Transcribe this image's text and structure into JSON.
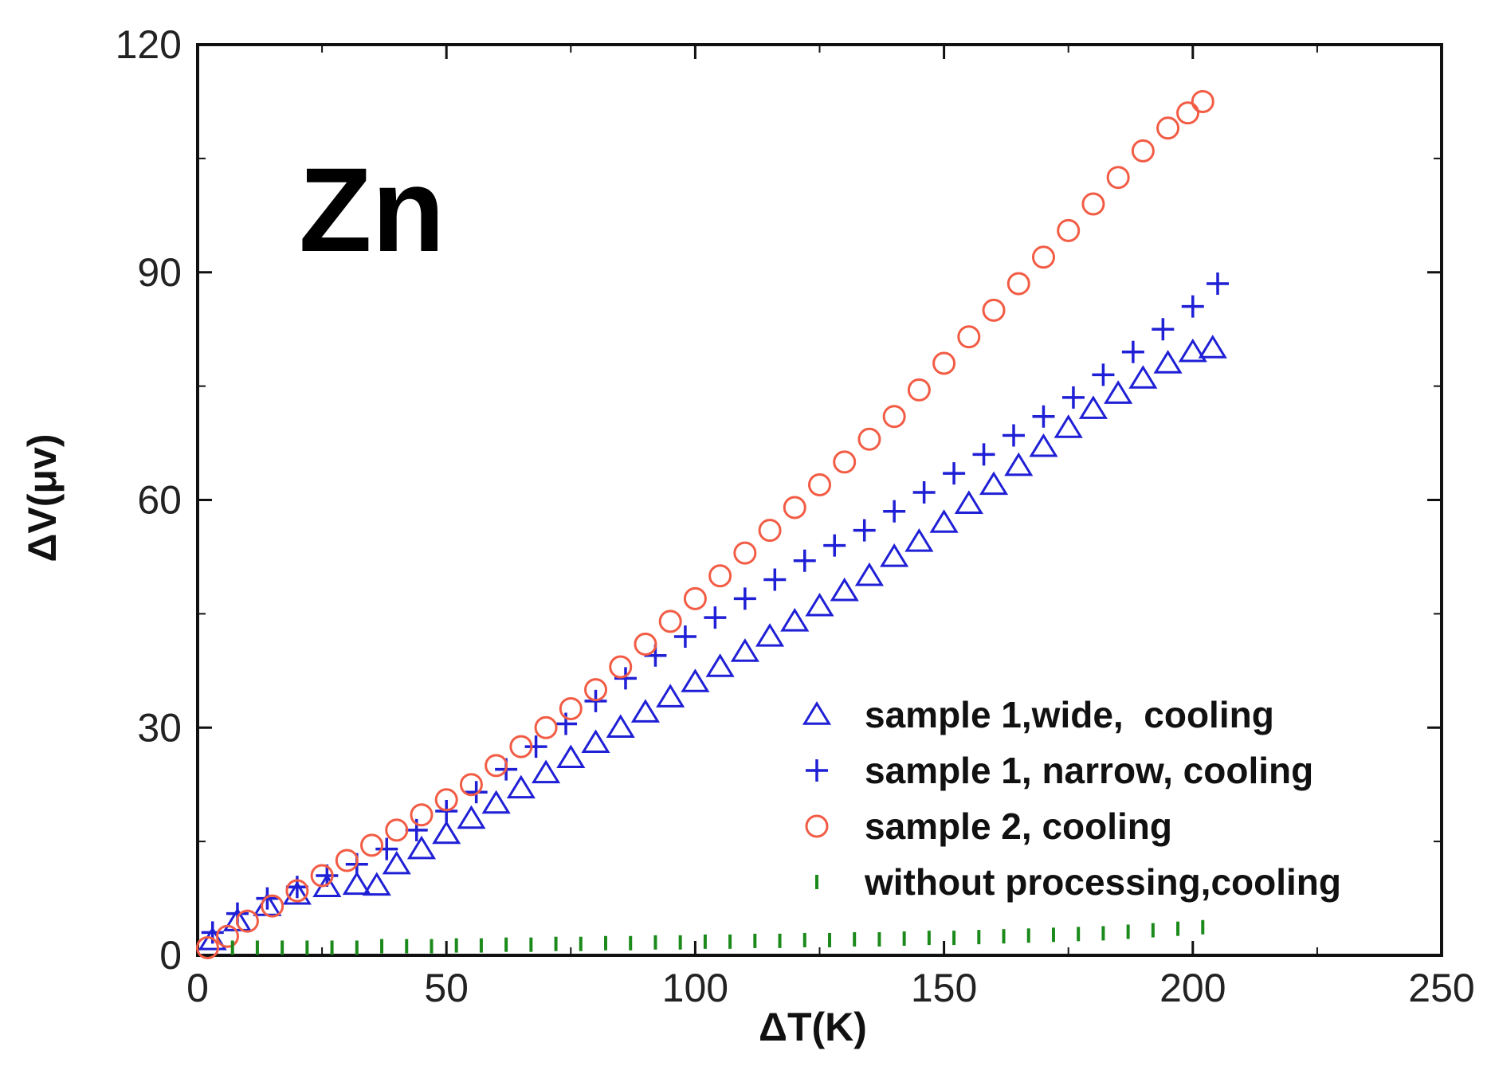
{
  "chart_data": {
    "type": "scatter",
    "title": "",
    "annotation": "Zn",
    "xlabel": "ΔT(K)",
    "ylabel": "ΔV(μv)",
    "xlim": [
      0,
      250
    ],
    "ylim": [
      0,
      120
    ],
    "xticks": [
      0,
      50,
      100,
      150,
      200,
      250
    ],
    "yticks": [
      0,
      30,
      60,
      90,
      120
    ],
    "xtick_labels": [
      "0",
      "50",
      "100",
      "150",
      "200",
      "250"
    ],
    "ytick_labels": [
      "0",
      "30",
      "60",
      "90",
      "120"
    ],
    "grid": false,
    "legend_position": "bottom-right",
    "series": [
      {
        "name": "sample 1,wide,  cooling",
        "marker": "triangle",
        "color": "#1f1fd6",
        "x": [
          3,
          8,
          14,
          20,
          26,
          32,
          36,
          40,
          45,
          50,
          55,
          60,
          65,
          70,
          75,
          80,
          85,
          90,
          95,
          100,
          105,
          110,
          115,
          120,
          125,
          130,
          135,
          140,
          145,
          150,
          155,
          160,
          165,
          170,
          175,
          180,
          185,
          190,
          195,
          200,
          204
        ],
        "y": [
          2,
          4.5,
          6.5,
          8,
          9,
          9.3,
          9.2,
          12,
          14,
          16,
          18,
          20,
          22,
          24,
          26,
          28,
          30,
          32,
          34,
          36,
          38,
          40,
          42,
          44,
          46,
          48,
          50,
          52.5,
          54.5,
          57,
          59.5,
          62,
          64.5,
          67,
          69.5,
          72,
          74,
          76,
          78,
          79.5,
          80
        ]
      },
      {
        "name": "sample 1, narrow, cooling",
        "marker": "plus",
        "color": "#1f1fd6",
        "x": [
          3,
          8,
          14,
          20,
          26,
          32,
          38,
          44,
          50,
          56,
          62,
          68,
          74,
          80,
          86,
          92,
          98,
          104,
          110,
          116,
          122,
          128,
          134,
          140,
          146,
          152,
          158,
          164,
          170,
          176,
          182,
          188,
          194,
          200,
          205
        ],
        "y": [
          3,
          5.5,
          7.5,
          9,
          10.5,
          12,
          14,
          16.5,
          19,
          21.5,
          24.5,
          27.5,
          30.5,
          33.5,
          36.5,
          39.5,
          42,
          44.5,
          47,
          49.5,
          52,
          54,
          56,
          58.5,
          61,
          63.5,
          66,
          68.5,
          71,
          73.5,
          76.5,
          79.5,
          82.5,
          85.5,
          88.5
        ]
      },
      {
        "name": "sample 2, cooling",
        "marker": "circle",
        "color": "#f25c45",
        "x": [
          2,
          6,
          10,
          15,
          20,
          25,
          30,
          35,
          40,
          45,
          50,
          55,
          60,
          65,
          70,
          75,
          80,
          85,
          90,
          95,
          100,
          105,
          110,
          115,
          120,
          125,
          130,
          135,
          140,
          145,
          150,
          155,
          160,
          165,
          170,
          175,
          180,
          185,
          190,
          195,
          199,
          202
        ],
        "y": [
          1,
          2.5,
          4.5,
          6.5,
          8.5,
          10.5,
          12.5,
          14.5,
          16.5,
          18.5,
          20.5,
          22.5,
          25,
          27.5,
          30,
          32.5,
          35,
          38,
          41,
          44,
          47,
          50,
          53,
          56,
          59,
          62,
          65,
          68,
          71,
          74.5,
          78,
          81.5,
          85,
          88.5,
          92,
          95.5,
          99,
          102.5,
          106,
          109,
          111,
          112.5
        ]
      },
      {
        "name": "without processing,cooling",
        "marker": "vline",
        "color": "#1b8a1b",
        "x": [
          7,
          12,
          17,
          22,
          27,
          32,
          37,
          42,
          47,
          52,
          57,
          62,
          67,
          72,
          77,
          82,
          87,
          92,
          97,
          102,
          107,
          112,
          117,
          122,
          127,
          132,
          137,
          142,
          147,
          152,
          157,
          162,
          167,
          172,
          177,
          182,
          187,
          192,
          197,
          202
        ],
        "y": [
          1,
          1,
          1,
          1,
          1,
          1,
          1.2,
          1.2,
          1.2,
          1.3,
          1.3,
          1.4,
          1.4,
          1.5,
          1.5,
          1.6,
          1.6,
          1.7,
          1.7,
          1.8,
          1.8,
          1.9,
          1.9,
          2,
          2,
          2.1,
          2.1,
          2.2,
          2.3,
          2.3,
          2.4,
          2.5,
          2.6,
          2.7,
          2.8,
          2.9,
          3.1,
          3.3,
          3.5,
          3.7
        ]
      }
    ]
  }
}
